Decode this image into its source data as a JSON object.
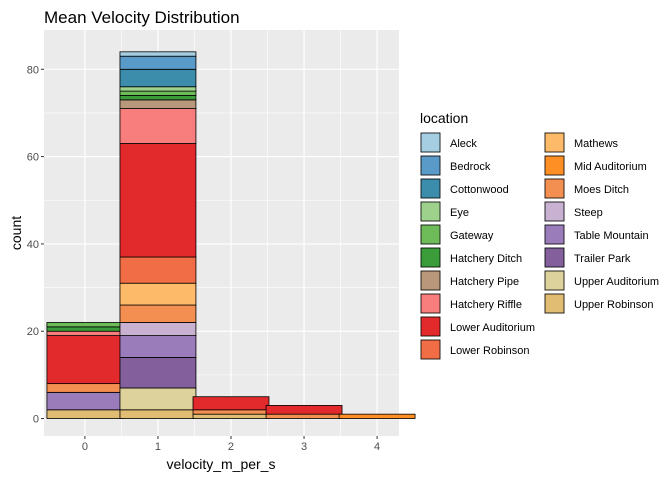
{
  "chart_data": {
    "type": "bar",
    "stacked": true,
    "title": "Mean Velocity Distribution",
    "xlabel": "velocity_m_per_s",
    "ylabel": "count",
    "x_bins": [
      0,
      1,
      2,
      3,
      4
    ],
    "x_ticks": [
      "0",
      "1",
      "2",
      "3",
      "4"
    ],
    "y_ticks": [
      "0",
      "20",
      "40",
      "60",
      "80"
    ],
    "ylim": [
      -4,
      89
    ],
    "grid": true,
    "legend_title": "location",
    "legend_position": "right",
    "series": [
      {
        "name": "Aleck",
        "color": "#a6cee3",
        "values": [
          0,
          1,
          0,
          0,
          0
        ]
      },
      {
        "name": "Bedrock",
        "color": "#5a9ac8",
        "values": [
          0,
          3,
          0,
          0,
          0
        ]
      },
      {
        "name": "Cottonwood",
        "color": "#3c8cab",
        "values": [
          0,
          4,
          0,
          0,
          0
        ]
      },
      {
        "name": "Eye",
        "color": "#9ed28c",
        "values": [
          0,
          1,
          0,
          0,
          0
        ]
      },
      {
        "name": "Gateway",
        "color": "#6dbb59",
        "values": [
          1,
          1,
          0,
          0,
          0
        ]
      },
      {
        "name": "Hatchery Ditch",
        "color": "#3a9d3a",
        "values": [
          1,
          1,
          0,
          0,
          0
        ]
      },
      {
        "name": "Hatchery Pipe",
        "color": "#b8977a",
        "values": [
          0,
          2,
          0,
          0,
          0
        ]
      },
      {
        "name": "Hatchery Riffle",
        "color": "#f77e7c",
        "values": [
          1,
          8,
          0,
          0,
          0
        ]
      },
      {
        "name": "Lower Auditorium",
        "color": "#e2292b",
        "values": [
          11,
          26,
          3,
          2,
          0
        ]
      },
      {
        "name": "Lower Robinson",
        "color": "#f06d46",
        "values": [
          0,
          6,
          0,
          0,
          0
        ]
      },
      {
        "name": "Mathews",
        "color": "#fdbb69",
        "values": [
          0,
          5,
          0,
          0,
          0
        ]
      },
      {
        "name": "Mid Auditorium",
        "color": "#fe8f25",
        "values": [
          0,
          0,
          0,
          0,
          1
        ]
      },
      {
        "name": "Moes Ditch",
        "color": "#f38f50",
        "values": [
          2,
          4,
          1,
          1,
          0
        ]
      },
      {
        "name": "Steep",
        "color": "#c9b1d2",
        "values": [
          0,
          3,
          0,
          0,
          0
        ]
      },
      {
        "name": "Table Mountain",
        "color": "#9b7cba",
        "values": [
          4,
          5,
          0,
          0,
          0
        ]
      },
      {
        "name": "Trailer Park",
        "color": "#835f9c",
        "values": [
          0,
          7,
          0,
          0,
          0
        ]
      },
      {
        "name": "Upper Auditorium",
        "color": "#ddd29b",
        "values": [
          0,
          5,
          0,
          0,
          0
        ]
      },
      {
        "name": "Upper Robinson",
        "color": "#e1bd74",
        "values": [
          2,
          2,
          1,
          0,
          0
        ]
      }
    ]
  }
}
